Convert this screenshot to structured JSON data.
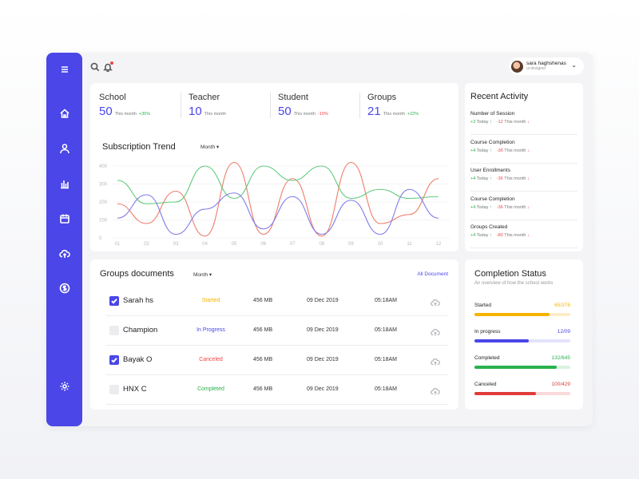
{
  "colors": {
    "accent": "#4a46e8",
    "positive": "#2bb24c",
    "negative": "#ef4444",
    "warning": "#f5b400",
    "series_red": "#ee7d6a",
    "series_green": "#5fcb7a",
    "series_blue": "#7f7bea"
  },
  "sidebar": {
    "items": [
      {
        "icon": "menu-icon"
      },
      {
        "icon": "home-icon"
      },
      {
        "icon": "user-icon"
      },
      {
        "icon": "bar-chart-icon"
      },
      {
        "icon": "calendar-icon"
      },
      {
        "icon": "cloud-upload-icon"
      },
      {
        "icon": "dollar-icon"
      },
      {
        "icon": "settings-icon"
      }
    ]
  },
  "topbar": {
    "search_icon": "search-icon",
    "bell_icon": "bell-icon",
    "user": {
      "name": "sara haghshenas",
      "role": "ui designer"
    }
  },
  "stats": [
    {
      "label": "School",
      "value": "50",
      "period": "This month",
      "change": "+35%",
      "trend": "up"
    },
    {
      "label": "Teacher",
      "value": "10",
      "period": "This month",
      "change": "",
      "trend": "none"
    },
    {
      "label": "Student",
      "value": "50",
      "period": "This month",
      "change": "-10%",
      "trend": "down"
    },
    {
      "label": "Groups",
      "value": "21",
      "period": "This month",
      "change": "+22%",
      "trend": "up"
    }
  ],
  "subscription": {
    "title": "Subscription Trend",
    "filter": "Month"
  },
  "chart_data": {
    "type": "line",
    "title": "Subscription Trend",
    "x": [
      "01",
      "02",
      "03",
      "04",
      "05",
      "06",
      "07",
      "08",
      "09",
      "10",
      "11",
      "12"
    ],
    "y_ticks": [
      0,
      100,
      200,
      300,
      400
    ],
    "ylim": [
      0,
      400
    ],
    "grid": true,
    "series": [
      {
        "color": "#ee7d6a",
        "values": [
          190,
          80,
          260,
          10,
          420,
          20,
          330,
          10,
          420,
          80,
          130,
          330
        ]
      },
      {
        "color": "#5fcb7a",
        "values": [
          320,
          190,
          200,
          400,
          220,
          400,
          320,
          400,
          220,
          270,
          220,
          230
        ]
      },
      {
        "color": "#7f7bea",
        "values": [
          110,
          240,
          20,
          160,
          250,
          50,
          230,
          20,
          210,
          20,
          270,
          110
        ]
      }
    ]
  },
  "activity": {
    "title": "Recent Activity",
    "items": [
      {
        "name": "Number of Session",
        "up": "+3",
        "up_period": "Today",
        "down": "-12",
        "down_period": "This month"
      },
      {
        "name": "Course Completion",
        "up": "+4",
        "up_period": "Today",
        "down": "-36",
        "down_period": "This month"
      },
      {
        "name": "User Enrollments",
        "up": "+4",
        "up_period": "Today",
        "down": "-36",
        "down_period": "This month"
      },
      {
        "name": "Course Completion",
        "up": "+4",
        "up_period": "Today",
        "down": "-36",
        "down_period": "This month"
      },
      {
        "name": "Groups Created",
        "up": "+4",
        "up_period": "Today",
        "down": "-80",
        "down_period": "This month"
      }
    ]
  },
  "documents": {
    "title": "Groups documents",
    "filter": "Month",
    "link": "All Document",
    "rows": [
      {
        "name": "Sarah hs",
        "status": "Started",
        "status_color": "#f5b400",
        "size": "456 MB",
        "date": "09 Dec 2019",
        "time": "05:18AM",
        "checked": true
      },
      {
        "name": "Champion",
        "status": "In Progress",
        "status_color": "#4a46e8",
        "size": "456 MB",
        "date": "09 Dec 2019",
        "time": "05:18AM",
        "checked": false
      },
      {
        "name": "Bayak O",
        "status": "Canceled",
        "status_color": "#ef4444",
        "size": "456 MB",
        "date": "09 Dec 2019",
        "time": "05:18AM",
        "checked": true
      },
      {
        "name": "HNX  C",
        "status": "Completed",
        "status_color": "#2bb24c",
        "size": "456 MB",
        "date": "09 Dec 2019",
        "time": "05:18AM",
        "checked": false
      }
    ]
  },
  "completion": {
    "title": "Completion Status",
    "subtitle": "An overview of how the school works",
    "items": [
      {
        "label": "Started",
        "value": "65/376",
        "fraction": 0.78,
        "color": "#f5b400",
        "track": "#fbeec8"
      },
      {
        "label": "In progress",
        "value": "12/09",
        "fraction": 0.57,
        "color": "#4a46e8",
        "track": "#e4e3fb"
      },
      {
        "label": "Completed",
        "value": "132/645",
        "fraction": 0.86,
        "color": "#2bb24c",
        "track": "#d9f2de"
      },
      {
        "label": "Canceled",
        "value": "100/429",
        "fraction": 0.64,
        "color": "#e03b3b",
        "track": "#fadada"
      }
    ]
  }
}
